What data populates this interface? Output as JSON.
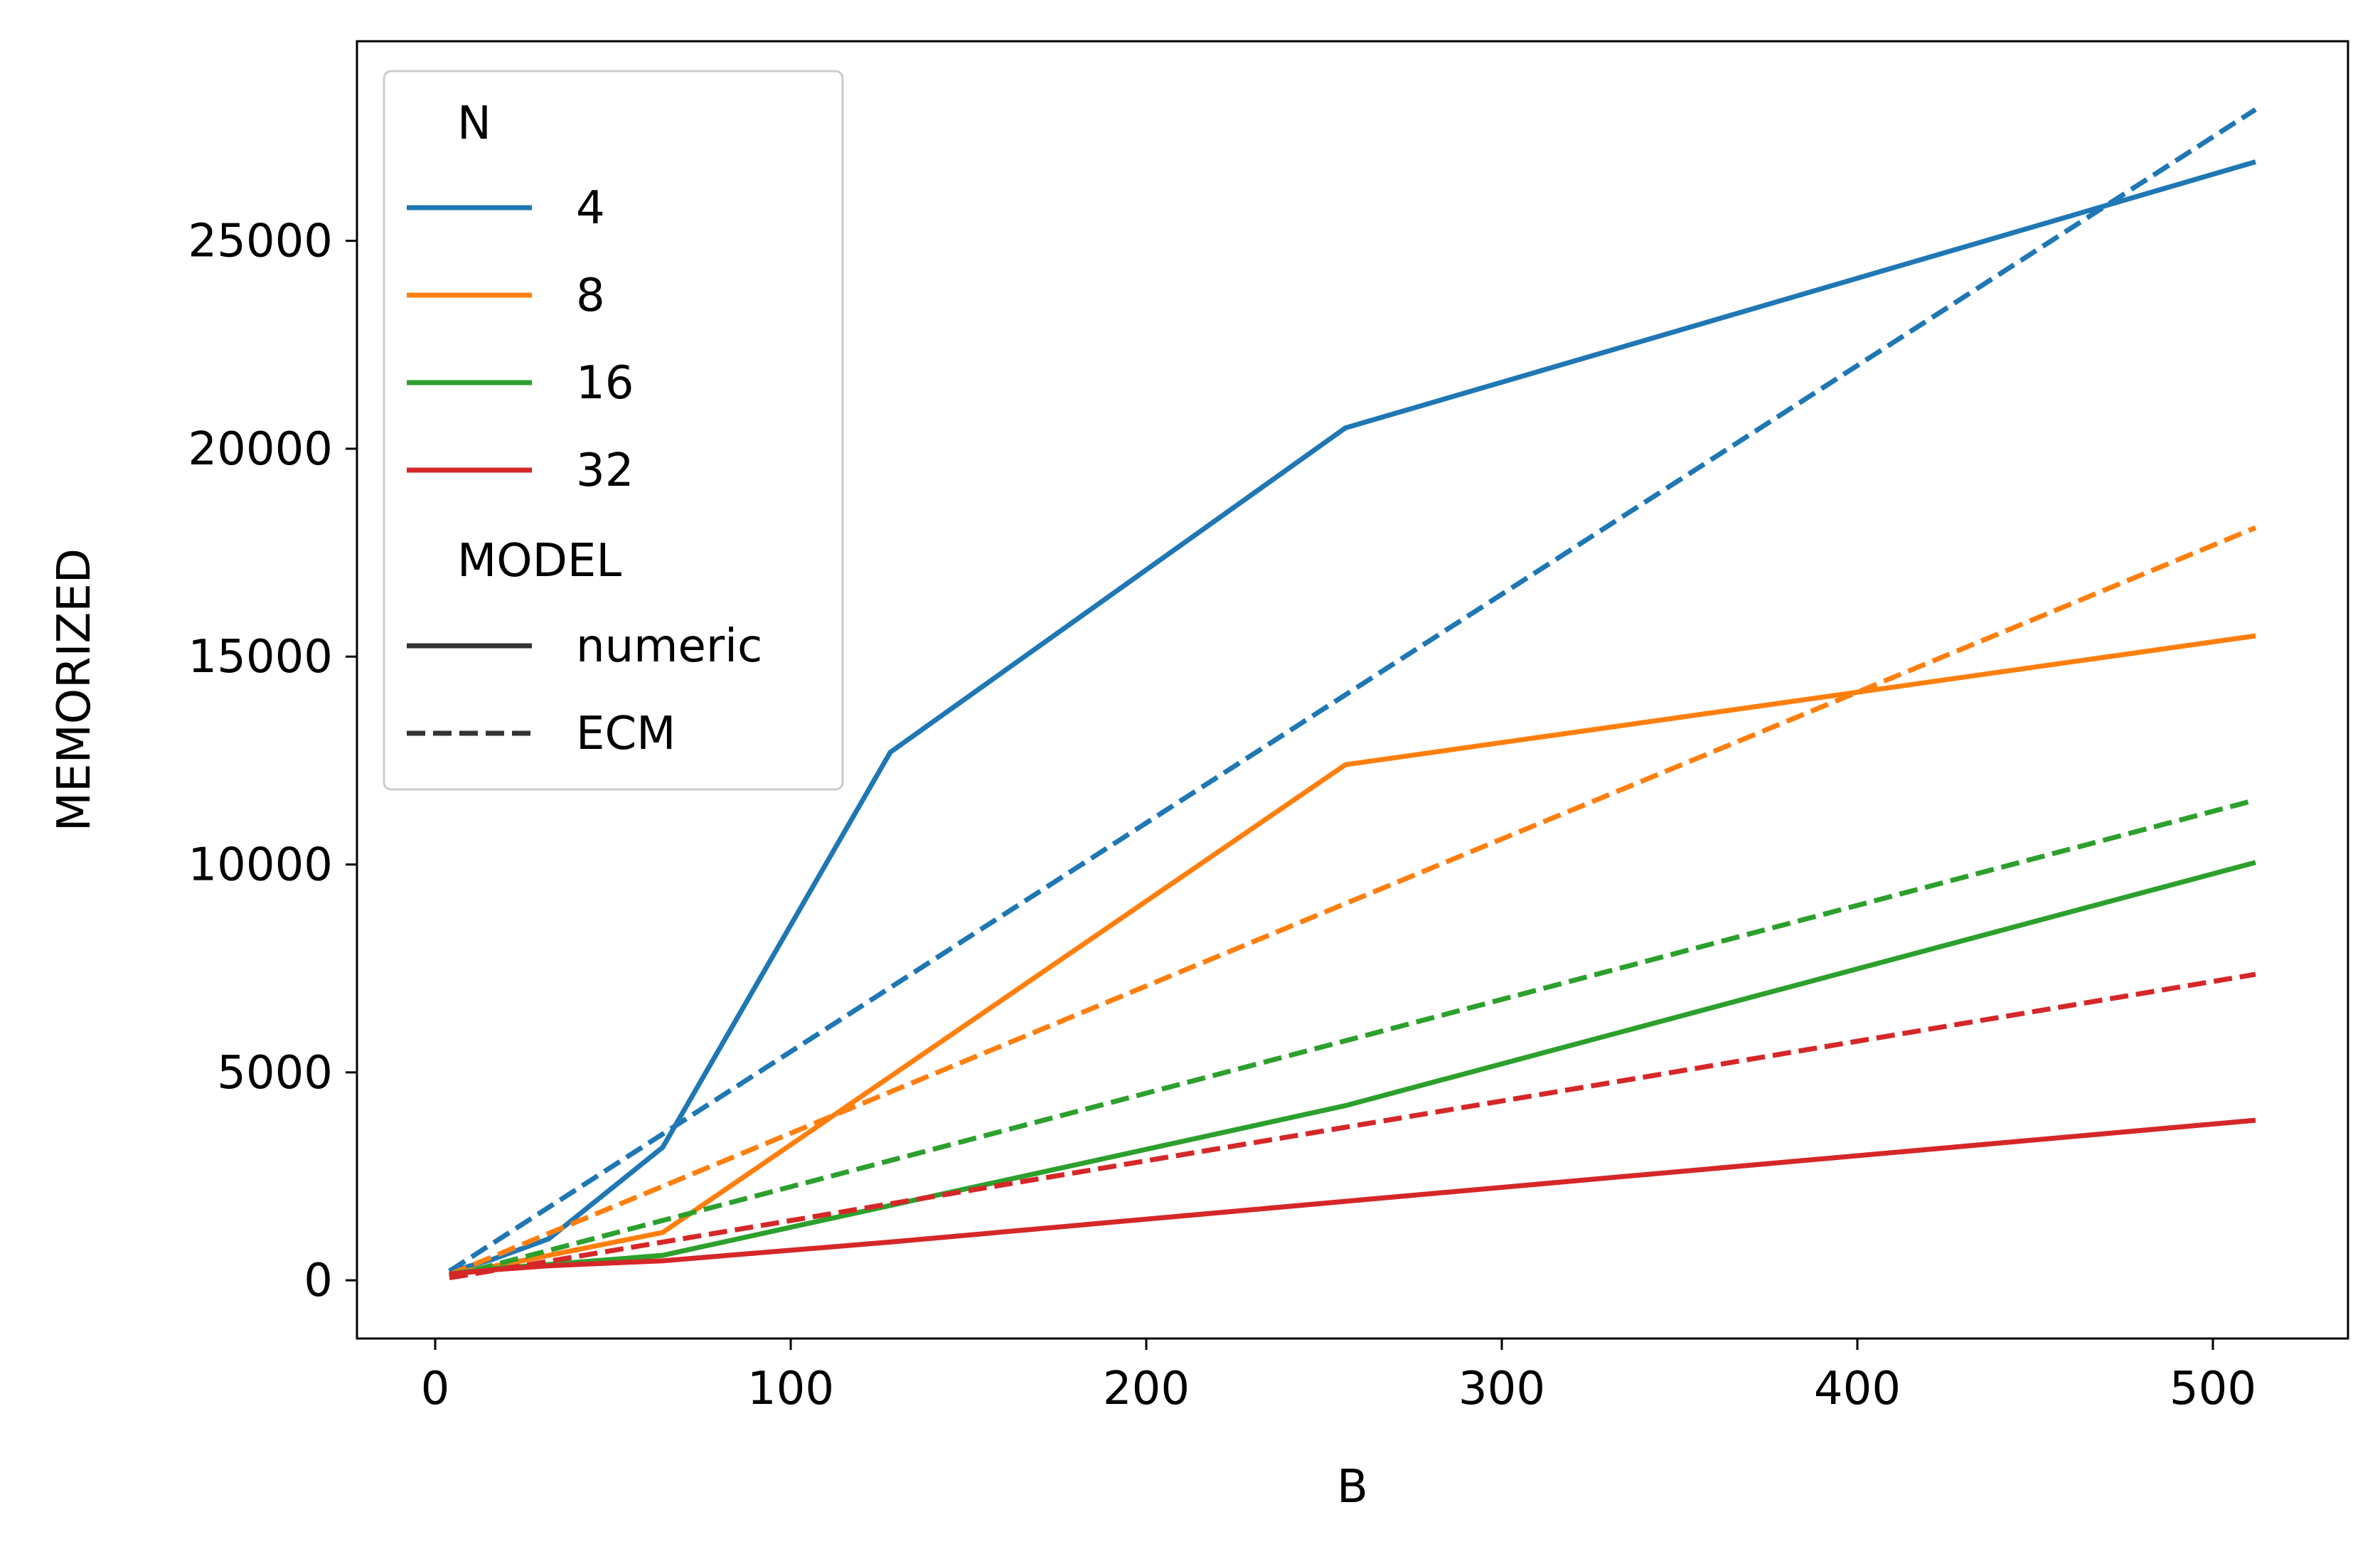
{
  "chart_data": {
    "type": "line",
    "title": "",
    "xlabel": "B",
    "ylabel": "MEMORIZED",
    "xlim": [
      -22,
      538
    ],
    "ylim": [
      -1400,
      29800
    ],
    "xticks": [
      0,
      100,
      200,
      300,
      400,
      500
    ],
    "yticks": [
      0,
      5000,
      10000,
      15000,
      20000,
      25000
    ],
    "grid": false,
    "legend": {
      "placement": "top-left",
      "hue_title": "N",
      "style_title": "MODEL",
      "hue_entries": [
        {
          "label": "4",
          "color": "#1f77b4"
        },
        {
          "label": "8",
          "color": "#ff7f0e"
        },
        {
          "label": "16",
          "color": "#2ca02c"
        },
        {
          "label": "32",
          "color": "#d62728"
        }
      ],
      "style_entries": [
        {
          "label": "numeric",
          "dash": "solid"
        },
        {
          "label": "ECM",
          "dash": "dashed"
        }
      ]
    },
    "x": [
      4,
      8,
      16,
      32,
      64,
      128,
      256,
      512
    ],
    "series": [
      {
        "name": "4 numeric",
        "n": "4",
        "model": "numeric",
        "color": "#1f77b4",
        "dash": "solid",
        "values": [
          200,
          300,
          500,
          1000,
          3200,
          12700,
          20500,
          26900
        ]
      },
      {
        "name": "4 ECM",
        "n": "4",
        "model": "ECM",
        "color": "#1f77b4",
        "dash": "dashed",
        "values": [
          220,
          440,
          880,
          1760,
          3520,
          7040,
          14080,
          28160
        ]
      },
      {
        "name": "8 numeric",
        "n": "8",
        "model": "numeric",
        "color": "#ff7f0e",
        "dash": "solid",
        "values": [
          150,
          220,
          330,
          600,
          1150,
          4900,
          12400,
          15500
        ]
      },
      {
        "name": "8 ECM",
        "n": "8",
        "model": "ECM",
        "color": "#ff7f0e",
        "dash": "dashed",
        "values": [
          140,
          280,
          560,
          1130,
          2260,
          4530,
          9060,
          18100
        ]
      },
      {
        "name": "16 numeric",
        "n": "16",
        "model": "numeric",
        "color": "#2ca02c",
        "dash": "solid",
        "values": [
          150,
          200,
          280,
          380,
          600,
          1800,
          4200,
          10050
        ]
      },
      {
        "name": "16 ECM",
        "n": "16",
        "model": "ECM",
        "color": "#2ca02c",
        "dash": "dashed",
        "values": [
          90,
          180,
          360,
          720,
          1440,
          2880,
          5760,
          11550
        ]
      },
      {
        "name": "32 numeric",
        "n": "32",
        "model": "numeric",
        "color": "#d62728",
        "dash": "solid",
        "values": [
          150,
          180,
          250,
          350,
          470,
          920,
          1900,
          3850
        ]
      },
      {
        "name": "32 ECM",
        "n": "32",
        "model": "ECM",
        "color": "#d62728",
        "dash": "dashed",
        "values": [
          60,
          115,
          230,
          460,
          920,
          1840,
          3680,
          7360
        ]
      }
    ]
  }
}
